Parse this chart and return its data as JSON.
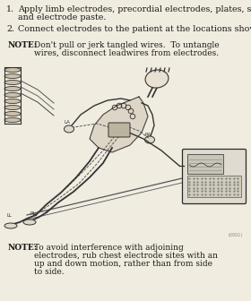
{
  "background_color": "#f0ece0",
  "text_color": "#1a1a1a",
  "font_size_main": 6.8,
  "font_size_note": 6.5,
  "item1_num": "1.",
  "item1_line1": "Apply limb electrodes, precordial electrodes, plates, suction bulbs,",
  "item1_line2": "and electrode paste.",
  "item2_num": "2.",
  "item2_line1": "Connect electrodes to the patient at the locations shown.",
  "note1_label": "NOTE:",
  "note1_line1": "Don't pull or jerk tangled wires.  To untangle",
  "note1_line2": "wires, disconnect leadwires from electrodes.",
  "note2_label": "NOTE:",
  "note2_line1": "To avoid interference with adjoining",
  "note2_line2": "electrodes, rub chest electrode sites with an",
  "note2_line3": "up and down motion, rather than from side",
  "note2_line4": "to side.",
  "small_label": "(0001)"
}
